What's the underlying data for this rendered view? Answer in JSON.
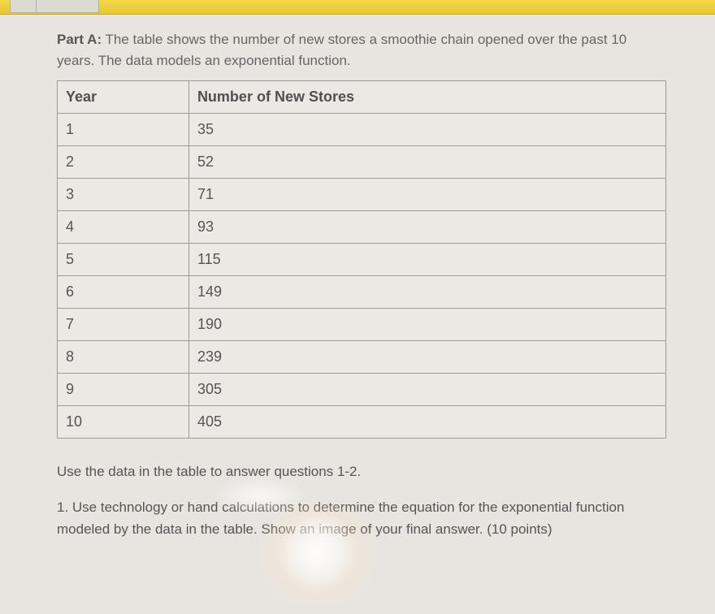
{
  "colors": {
    "page_bg": "#e8e5e0",
    "accent_bar": "#e8c830",
    "text": "#555555",
    "border": "#9a9a9a"
  },
  "typography": {
    "family": "Arial",
    "body_size_pt": 13,
    "header_weight": "bold"
  },
  "partA": {
    "label": "Part A:",
    "text": "The table shows the number of new stores a smoothie chain opened over the past 10 years. The data models an exponential function."
  },
  "table": {
    "type": "table",
    "columns": [
      "Year",
      "Number of New Stores"
    ],
    "column_widths_pct": [
      50,
      50
    ],
    "border_color": "#9a9a9a",
    "rows": [
      [
        "1",
        "35"
      ],
      [
        "2",
        "52"
      ],
      [
        "3",
        "71"
      ],
      [
        "4",
        "93"
      ],
      [
        "5",
        "115"
      ],
      [
        "6",
        "149"
      ],
      [
        "7",
        "190"
      ],
      [
        "8",
        "239"
      ],
      [
        "9",
        "305"
      ],
      [
        "10",
        "405"
      ]
    ]
  },
  "instruction": "Use the data in the table to answer questions 1-2.",
  "q1": "1. Use technology or hand calculations to determine the equation for the exponential function modeled by the data in the table. Show an image of your final answer. (10 points)"
}
